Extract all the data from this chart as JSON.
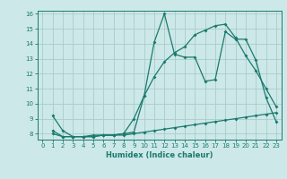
{
  "bg_color": "#cde8e8",
  "grid_color": "#aacccc",
  "line_color": "#1a7a6e",
  "xlabel": "Humidex (Indice chaleur)",
  "xlim": [
    -0.5,
    23.5
  ],
  "ylim": [
    7.6,
    16.2
  ],
  "yticks": [
    8,
    9,
    10,
    11,
    12,
    13,
    14,
    15,
    16
  ],
  "xticks": [
    0,
    1,
    2,
    3,
    4,
    5,
    6,
    7,
    8,
    9,
    10,
    11,
    12,
    13,
    14,
    15,
    16,
    17,
    18,
    19,
    20,
    21,
    22,
    23
  ],
  "series1_x": [
    1,
    2,
    3,
    4,
    5,
    6,
    7,
    8,
    9,
    10,
    11,
    12,
    13,
    14,
    15,
    16,
    17,
    18,
    19,
    20,
    21,
    22,
    23
  ],
  "series1_y": [
    9.2,
    8.2,
    7.8,
    7.8,
    7.8,
    7.9,
    7.9,
    8.0,
    8.1,
    10.5,
    14.1,
    16.0,
    13.3,
    13.1,
    13.1,
    11.5,
    11.6,
    14.8,
    14.3,
    14.3,
    12.9,
    10.4,
    8.8
  ],
  "series2_x": [
    1,
    2,
    3,
    4,
    5,
    6,
    7,
    8,
    9,
    10,
    11,
    12,
    13,
    14,
    15,
    16,
    17,
    18,
    19,
    20,
    21,
    22,
    23
  ],
  "series2_y": [
    8.2,
    7.8,
    7.8,
    7.8,
    7.9,
    7.9,
    7.9,
    8.0,
    9.0,
    10.5,
    11.8,
    12.8,
    13.4,
    13.8,
    14.6,
    14.9,
    15.2,
    15.3,
    14.4,
    13.2,
    12.2,
    11.0,
    9.8
  ],
  "series3_x": [
    1,
    2,
    3,
    4,
    5,
    6,
    7,
    8,
    9,
    10,
    11,
    12,
    13,
    14,
    15,
    16,
    17,
    18,
    19,
    20,
    21,
    22,
    23
  ],
  "series3_y": [
    8.0,
    7.8,
    7.8,
    7.8,
    7.8,
    7.9,
    7.9,
    7.9,
    8.0,
    8.1,
    8.2,
    8.3,
    8.4,
    8.5,
    8.6,
    8.7,
    8.8,
    8.9,
    9.0,
    9.1,
    9.2,
    9.3,
    9.4
  ]
}
